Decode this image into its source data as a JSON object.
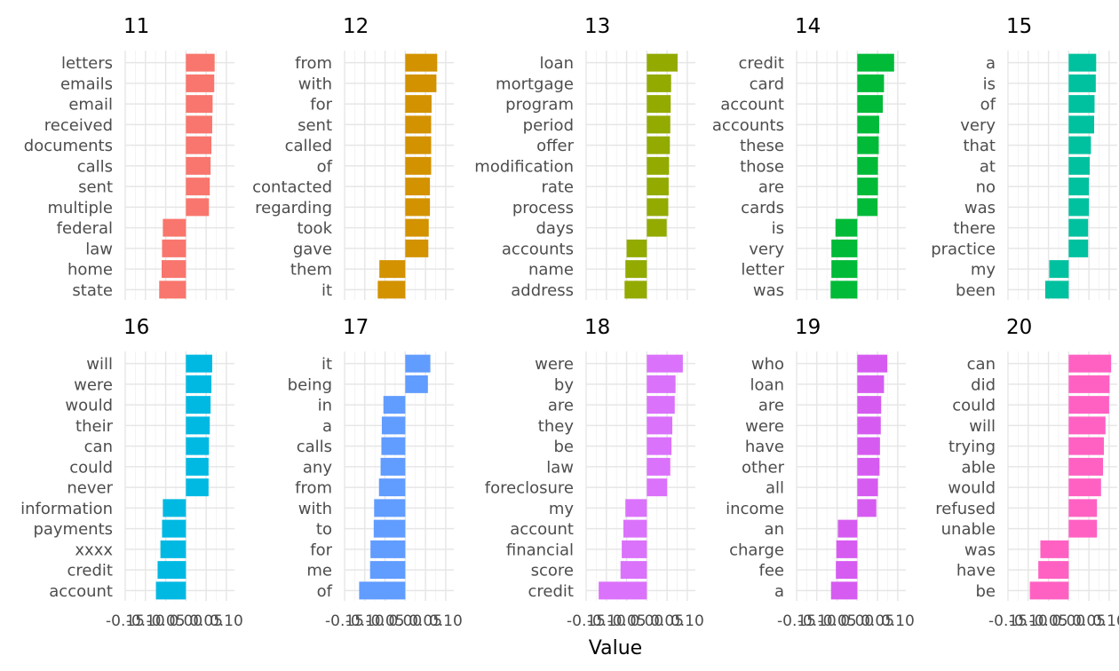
{
  "chart_data": {
    "type": "bar",
    "orientation": "horizontal",
    "layout": "facets 2x5",
    "xlabel": "Value",
    "ylabel": "",
    "xlim": [
      -0.15,
      0.12
    ],
    "x_ticks": [
      -0.15,
      -0.1,
      -0.05,
      0.0,
      0.05,
      0.1
    ],
    "x_tick_labels": [
      "-0.15",
      "-0.10",
      "-0.05",
      "0.00",
      "0.05",
      "0.10"
    ],
    "grid": true,
    "legend": "none",
    "facets": [
      {
        "name": "11",
        "color": "#F8766D",
        "categories": [
          "letters",
          "emails",
          "email",
          "received",
          "documents",
          "calls",
          "sent",
          "multiple",
          "federal",
          "law",
          "home",
          "state"
        ],
        "values": [
          0.071,
          0.07,
          0.066,
          0.065,
          0.063,
          0.061,
          0.059,
          0.057,
          -0.057,
          -0.059,
          -0.06,
          -0.066
        ]
      },
      {
        "name": "12",
        "color": "#D39200",
        "categories": [
          "from",
          "with",
          "for",
          "sent",
          "called",
          "of",
          "contacted",
          "regarding",
          "took",
          "gave",
          "them",
          "it"
        ],
        "values": [
          0.079,
          0.077,
          0.065,
          0.064,
          0.064,
          0.064,
          0.061,
          0.061,
          0.058,
          0.057,
          -0.064,
          -0.068
        ]
      },
      {
        "name": "13",
        "color": "#93AA00",
        "categories": [
          "loan",
          "mortgage",
          "program",
          "period",
          "offer",
          "modification",
          "rate",
          "process",
          "days",
          "accounts",
          "name",
          "address"
        ],
        "values": [
          0.076,
          0.06,
          0.059,
          0.058,
          0.057,
          0.055,
          0.054,
          0.053,
          0.049,
          -0.05,
          -0.053,
          -0.055
        ]
      },
      {
        "name": "14",
        "color": "#00BA38",
        "categories": [
          "credit",
          "card",
          "account",
          "accounts",
          "these",
          "those",
          "are",
          "cards",
          "is",
          "very",
          "letter",
          "was"
        ],
        "values": [
          0.091,
          0.066,
          0.063,
          0.054,
          0.053,
          0.051,
          0.051,
          0.05,
          -0.054,
          -0.064,
          -0.064,
          -0.066
        ]
      },
      {
        "name": "15",
        "color": "#00C19F",
        "categories": [
          "a",
          "is",
          "of",
          "very",
          "that",
          "at",
          "no",
          "was",
          "there",
          "practice",
          "my",
          "been"
        ],
        "values": [
          0.068,
          0.067,
          0.064,
          0.063,
          0.055,
          0.052,
          0.05,
          0.05,
          0.048,
          0.048,
          -0.048,
          -0.058
        ]
      },
      {
        "name": "16",
        "color": "#00B9E3",
        "categories": [
          "will",
          "were",
          "would",
          "their",
          "can",
          "could",
          "never",
          "information",
          "payments",
          "xxxx",
          "credit",
          "account"
        ],
        "values": [
          0.065,
          0.063,
          0.061,
          0.059,
          0.057,
          0.056,
          0.056,
          -0.057,
          -0.059,
          -0.063,
          -0.07,
          -0.074
        ]
      },
      {
        "name": "17",
        "color": "#619CFF",
        "categories": [
          "it",
          "being",
          "in",
          "a",
          "calls",
          "any",
          "from",
          "with",
          "to",
          "for",
          "me",
          "of"
        ],
        "values": [
          0.062,
          0.056,
          -0.054,
          -0.058,
          -0.059,
          -0.061,
          -0.065,
          -0.077,
          -0.078,
          -0.086,
          -0.087,
          -0.114
        ]
      },
      {
        "name": "18",
        "color": "#DB72FB",
        "categories": [
          "were",
          "by",
          "are",
          "they",
          "be",
          "law",
          "foreclosure",
          "my",
          "account",
          "financial",
          "score",
          "credit"
        ],
        "values": [
          0.089,
          0.071,
          0.069,
          0.063,
          0.061,
          0.058,
          0.05,
          -0.053,
          -0.058,
          -0.062,
          -0.065,
          -0.119
        ]
      },
      {
        "name": "19",
        "color": "#D65CF1",
        "categories": [
          "who",
          "loan",
          "are",
          "were",
          "have",
          "other",
          "all",
          "income",
          "an",
          "charge",
          "fee",
          "a"
        ],
        "values": [
          0.074,
          0.066,
          0.059,
          0.058,
          0.056,
          0.055,
          0.051,
          0.047,
          -0.048,
          -0.052,
          -0.053,
          -0.065
        ]
      },
      {
        "name": "20",
        "color": "#FF61C3",
        "categories": [
          "can",
          "did",
          "could",
          "will",
          "trying",
          "able",
          "would",
          "refused",
          "unable",
          "was",
          "have",
          "be"
        ],
        "values": [
          0.105,
          0.101,
          0.1,
          0.091,
          0.087,
          0.085,
          0.08,
          0.07,
          0.07,
          -0.07,
          -0.075,
          -0.096
        ]
      }
    ]
  }
}
